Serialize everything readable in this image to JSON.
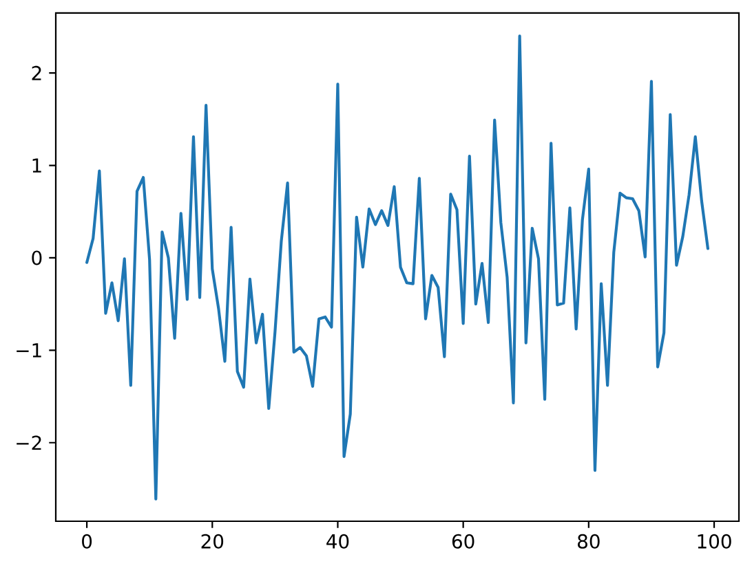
{
  "chart_data": {
    "type": "line",
    "color": "#1f77b4",
    "line_style": "solid",
    "x": [
      0,
      1,
      2,
      3,
      4,
      5,
      6,
      7,
      8,
      9,
      10,
      11,
      12,
      13,
      14,
      15,
      16,
      17,
      18,
      19,
      20,
      21,
      22,
      23,
      24,
      25,
      26,
      27,
      28,
      29,
      30,
      31,
      32,
      33,
      34,
      35,
      36,
      37,
      38,
      39,
      40,
      41,
      42,
      43,
      44,
      45,
      46,
      47,
      48,
      49,
      50,
      51,
      52,
      53,
      54,
      55,
      56,
      57,
      58,
      59,
      60,
      61,
      62,
      63,
      64,
      65,
      66,
      67,
      68,
      69,
      70,
      71,
      72,
      73,
      74,
      75,
      76,
      77,
      78,
      79,
      80,
      81,
      82,
      83,
      84,
      85,
      86,
      87,
      88,
      89,
      90,
      91,
      92,
      93,
      94,
      95,
      96,
      97,
      98,
      99
    ],
    "values": [
      -0.05,
      0.21,
      0.94,
      -0.6,
      -0.27,
      -0.68,
      -0.01,
      -1.38,
      0.72,
      0.87,
      -0.02,
      -2.61,
      0.28,
      0.0,
      -0.87,
      0.48,
      -0.45,
      1.31,
      -0.43,
      1.65,
      -0.12,
      -0.55,
      -1.12,
      0.33,
      -1.23,
      -1.4,
      -0.23,
      -0.92,
      -0.61,
      -1.63,
      -0.8,
      0.18,
      0.81,
      -1.02,
      -0.97,
      -1.06,
      -1.39,
      -0.66,
      -0.64,
      -0.75,
      1.88,
      -2.15,
      -1.69,
      0.44,
      -0.1,
      0.53,
      0.36,
      0.51,
      0.35,
      0.77,
      -0.1,
      -0.27,
      -0.28,
      0.86,
      -0.66,
      -0.19,
      -0.32,
      -1.07,
      0.69,
      0.52,
      -0.71,
      1.1,
      -0.5,
      -0.06,
      -0.7,
      1.49,
      0.38,
      -0.21,
      -1.57,
      2.4,
      -0.92,
      0.32,
      -0.01,
      -1.53,
      1.24,
      -0.51,
      -0.49,
      0.54,
      -0.77,
      0.41,
      0.96,
      -2.3,
      -0.28,
      -1.38,
      0.06,
      0.7,
      0.65,
      0.64,
      0.51,
      0.01,
      1.91,
      -1.18,
      -0.81,
      1.55,
      -0.08,
      0.23,
      0.68,
      1.31,
      0.62,
      0.1
    ],
    "xlim": [
      -4.95,
      103.95
    ],
    "xticks": [
      0,
      20,
      40,
      60,
      80,
      100
    ],
    "ylim": [
      -2.85,
      2.65
    ],
    "yticks": [
      {
        "value": -2,
        "label": "−2"
      },
      {
        "value": -1,
        "label": "−1"
      },
      0,
      1,
      2
    ]
  }
}
